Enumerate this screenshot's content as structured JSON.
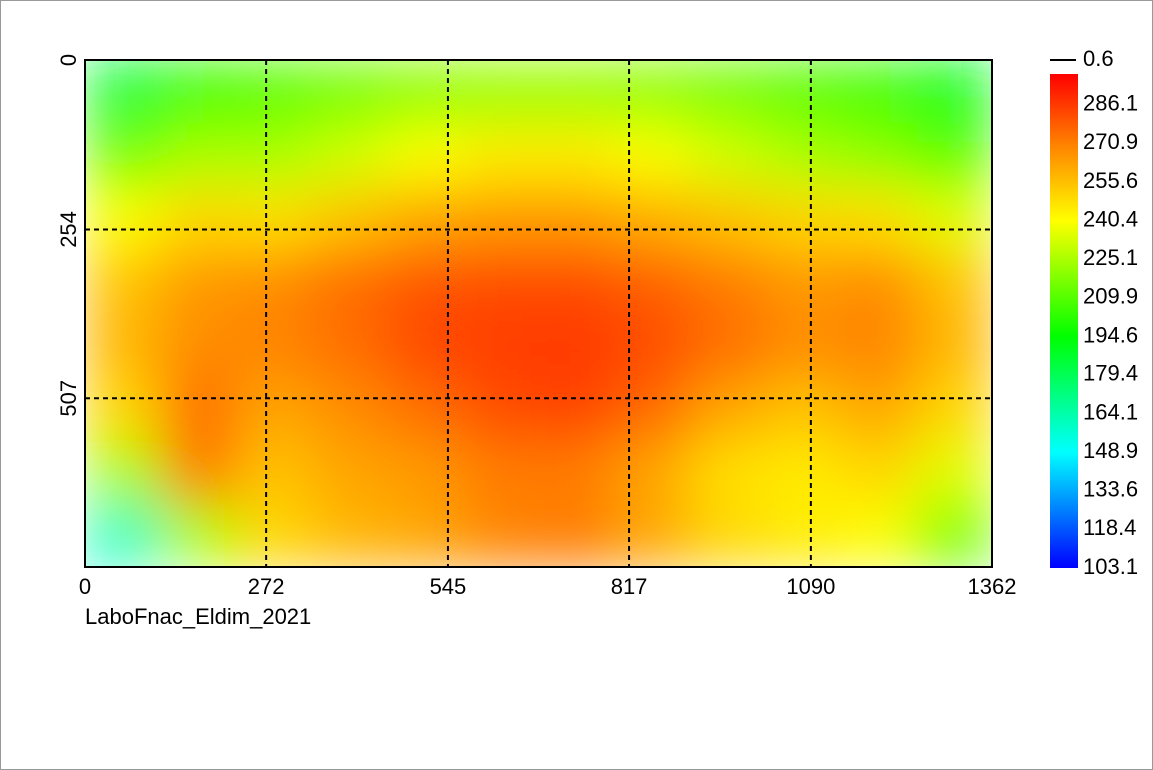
{
  "chart_data": {
    "type": "heatmap",
    "caption": "LaboFnac_Eldim_2021",
    "xlim": [
      0,
      1362
    ],
    "xticks": [
      0,
      272,
      545,
      817,
      1090,
      1362
    ],
    "ylim": [
      0,
      760
    ],
    "yticks": [
      0,
      254,
      507
    ],
    "y_inverted": true,
    "grid": true,
    "z": [
      [
        185,
        205,
        210,
        215,
        220,
        222,
        222,
        220,
        215,
        210,
        205,
        190
      ],
      [
        215,
        225,
        225,
        232,
        240,
        245,
        245,
        240,
        232,
        225,
        220,
        210
      ],
      [
        240,
        250,
        248,
        255,
        262,
        265,
        265,
        260,
        255,
        250,
        248,
        235
      ],
      [
        255,
        265,
        268,
        275,
        280,
        282,
        282,
        278,
        272,
        265,
        268,
        255
      ],
      [
        258,
        268,
        270,
        275,
        283,
        285,
        286,
        282,
        275,
        268,
        270,
        258
      ],
      [
        250,
        275,
        262,
        268,
        275,
        282,
        284,
        276,
        262,
        255,
        262,
        250
      ],
      [
        225,
        272,
        255,
        262,
        265,
        272,
        272,
        262,
        248,
        245,
        250,
        235
      ],
      [
        160,
        225,
        250,
        258,
        262,
        270,
        272,
        262,
        250,
        245,
        240,
        215
      ]
    ],
    "zlim": [
      103.1,
      298.3
    ],
    "zticks": [
      103.1,
      118.4,
      133.6,
      148.9,
      164.1,
      179.4,
      194.6,
      209.9,
      225.1,
      240.4,
      255.6,
      270.9,
      286.1
    ],
    "colorbar_note": 0.6,
    "colorscale": [
      [
        103.1,
        "#0000ff"
      ],
      [
        148.9,
        "#00ffff"
      ],
      [
        194.6,
        "#00ff00"
      ],
      [
        240.4,
        "#ffff00"
      ],
      [
        270.9,
        "#ff8000"
      ],
      [
        298.3,
        "#ff0000"
      ]
    ]
  }
}
